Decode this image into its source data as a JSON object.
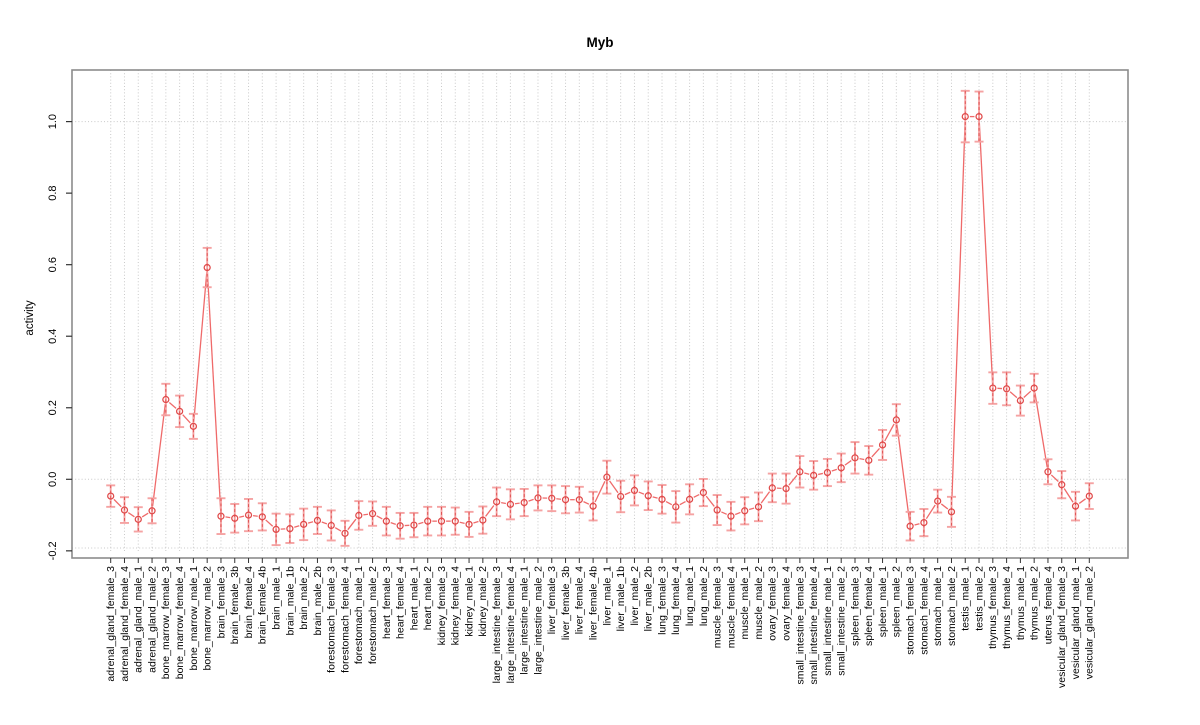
{
  "page": {
    "background": "#ffffff"
  },
  "chart_data": {
    "type": "line",
    "title": "Myb",
    "xlabel": "",
    "ylabel": "activity",
    "legend": "none",
    "style": "open-circle points with error bars, connected segments (R type='b')",
    "ylim": [
      -0.22,
      1.145
    ],
    "yticks": [
      {
        "value": -0.2,
        "label": "-0.2"
      },
      {
        "value": 0.0,
        "label": "0.0"
      },
      {
        "value": 0.2,
        "label": "0.2"
      },
      {
        "value": 0.4,
        "label": "0.4"
      },
      {
        "value": 0.6,
        "label": "0.6"
      },
      {
        "value": 0.8,
        "label": "0.8"
      },
      {
        "value": 1.0,
        "label": "1.0"
      }
    ],
    "grid": {
      "h_lines": [
        1.0,
        0.0,
        -0.192
      ],
      "v_line_at_each_category": true,
      "pattern": "dotted"
    },
    "categories": [
      "adrenal_gland_female_3",
      "adrenal_gland_female_4",
      "adrenal_gland_male_1",
      "adrenal_gland_male_2",
      "bone_marrow_female_3",
      "bone_marrow_female_4",
      "bone_marrow_male_1",
      "bone_marrow_male_2",
      "brain_female_3",
      "brain_female_3b",
      "brain_female_4",
      "brain_female_4b",
      "brain_male_1",
      "brain_male_1b",
      "brain_male_2",
      "brain_male_2b",
      "forestomach_female_3",
      "forestomach_female_4",
      "forestomach_male_1",
      "forestomach_male_2",
      "heart_female_3",
      "heart_female_4",
      "heart_male_1",
      "heart_male_2",
      "kidney_female_3",
      "kidney_female_4",
      "kidney_male_1",
      "kidney_male_2",
      "large_intestine_female_3",
      "large_intestine_female_4",
      "large_intestine_male_1",
      "large_intestine_male_2",
      "liver_female_3",
      "liver_female_3b",
      "liver_female_4",
      "liver_female_4b",
      "liver_male_1",
      "liver_male_1b",
      "liver_male_2",
      "liver_male_2b",
      "lung_female_3",
      "lung_female_4",
      "lung_male_1",
      "lung_male_2",
      "muscle_female_3",
      "muscle_female_4",
      "muscle_male_1",
      "muscle_male_2",
      "ovary_female_3",
      "ovary_female_4",
      "small_intestine_female_3",
      "small_intestine_female_4",
      "small_intestine_male_1",
      "small_intestine_male_2",
      "spleen_female_3",
      "spleen_female_4",
      "spleen_male_1",
      "spleen_male_2",
      "stomach_female_3",
      "stomach_female_4",
      "stomach_male_1",
      "stomach_male_2",
      "testis_male_1",
      "testis_male_2",
      "thymus_female_3",
      "thymus_female_4",
      "thymus_male_1",
      "thymus_male_2",
      "uterus_female_4",
      "vesicular_gland_female_3",
      "vesicular_gland_male_1",
      "vesicular_gland_male_2"
    ],
    "values": [
      -0.047,
      -0.086,
      -0.112,
      -0.088,
      0.223,
      0.19,
      0.148,
      0.592,
      -0.103,
      -0.109,
      -0.1,
      -0.105,
      -0.14,
      -0.138,
      -0.126,
      -0.115,
      -0.129,
      -0.151,
      -0.101,
      -0.096,
      -0.117,
      -0.13,
      -0.128,
      -0.117,
      -0.117,
      -0.117,
      -0.126,
      -0.114,
      -0.063,
      -0.07,
      -0.065,
      -0.052,
      -0.053,
      -0.057,
      -0.057,
      -0.075,
      0.006,
      -0.048,
      -0.031,
      -0.046,
      -0.056,
      -0.077,
      -0.056,
      -0.037,
      -0.086,
      -0.103,
      -0.088,
      -0.077,
      -0.024,
      -0.026,
      0.021,
      0.011,
      0.019,
      0.032,
      0.06,
      0.053,
      0.096,
      0.166,
      -0.131,
      -0.121,
      -0.061,
      -0.091,
      1.014,
      1.014,
      0.255,
      0.253,
      0.22,
      0.255,
      0.021,
      -0.015,
      -0.075,
      -0.047
    ],
    "errors": [
      0.03,
      0.036,
      0.034,
      0.035,
      0.044,
      0.044,
      0.035,
      0.055,
      0.05,
      0.04,
      0.045,
      0.038,
      0.044,
      0.04,
      0.044,
      0.038,
      0.042,
      0.035,
      0.04,
      0.034,
      0.04,
      0.036,
      0.034,
      0.04,
      0.04,
      0.038,
      0.035,
      0.038,
      0.04,
      0.042,
      0.038,
      0.035,
      0.036,
      0.038,
      0.036,
      0.04,
      0.046,
      0.044,
      0.042,
      0.04,
      0.04,
      0.044,
      0.042,
      0.038,
      0.042,
      0.04,
      0.038,
      0.04,
      0.04,
      0.042,
      0.044,
      0.04,
      0.038,
      0.04,
      0.044,
      0.04,
      0.042,
      0.044,
      0.04,
      0.038,
      0.032,
      0.042,
      0.072,
      0.07,
      0.044,
      0.046,
      0.042,
      0.04,
      0.035,
      0.038,
      0.04,
      0.036
    ],
    "colors": {
      "point": "#e04a4a",
      "line": "#ef6a6a",
      "error_bar": "#f5a3a3",
      "error_dash": "#e05555",
      "grid": "#c9c9c9",
      "box": "#8c8c8c",
      "tick": "#333333",
      "text": "#000000"
    }
  }
}
